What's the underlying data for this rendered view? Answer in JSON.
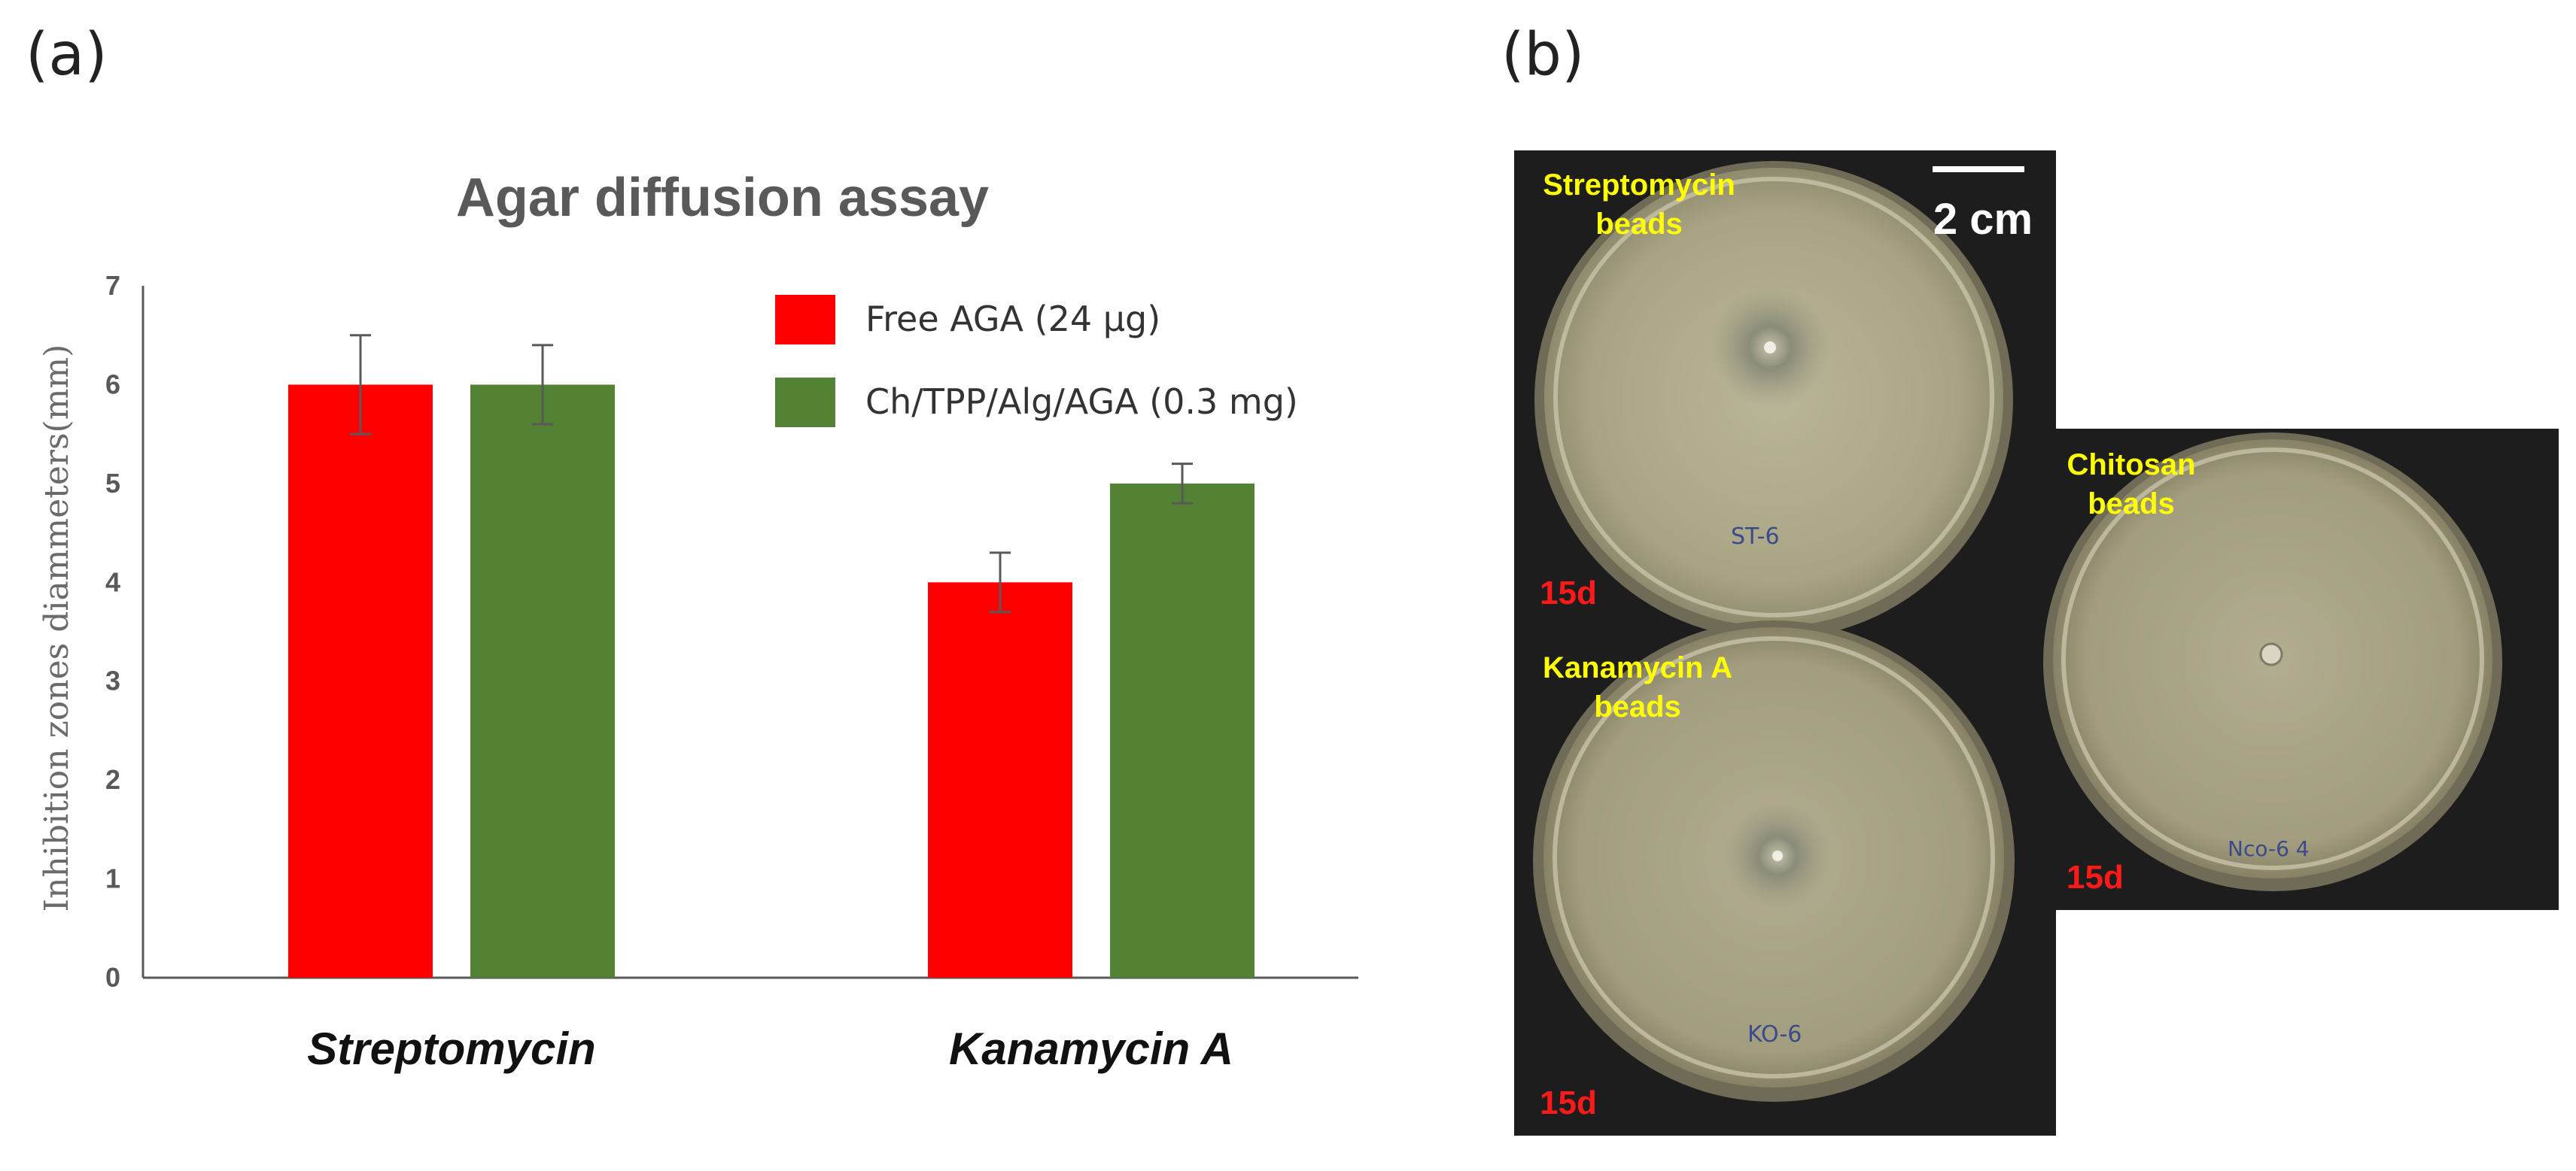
{
  "panels": {
    "a_label": "(a)",
    "b_label": "(b)"
  },
  "chart_data": {
    "type": "bar",
    "title": "Agar diffusion assay",
    "xlabel": "",
    "ylabel": "Inhibition zones diammeters(mm)",
    "ylim": [
      0,
      7
    ],
    "yticks": [
      "0",
      "1",
      "2",
      "3",
      "4",
      "5",
      "6",
      "7"
    ],
    "categories": [
      "Streptomycin",
      "Kanamycin A"
    ],
    "series": [
      {
        "name": "Free AGA (24 µg)",
        "color": "#ff0000",
        "values": [
          6.0,
          4.0
        ],
        "errors": [
          0.5,
          0.3
        ]
      },
      {
        "name": "Ch/TPP/Alg/AGA (0.3 mg)",
        "color": "#548235",
        "values": [
          6.0,
          5.0
        ],
        "errors": [
          0.4,
          0.2
        ]
      }
    ],
    "legend_position": "top-right",
    "grid": false
  },
  "photos": {
    "top_left_label": "Streptomycin\nbeads",
    "scale_bar_label": "2 cm",
    "top_left_time": "15d",
    "bottom_left_label": "Kanamycin A\nbeads",
    "bottom_left_time": "15d",
    "right_label": "Chitosan\nbeads",
    "right_time": "15d",
    "plate_marks": {
      "top_left_bottom": "ST-6",
      "bottom_left_bottom": "KO-6",
      "right_bottom": "Nco-6 4"
    },
    "label_color": "#ffff00",
    "time_color": "#ff1a1a"
  }
}
